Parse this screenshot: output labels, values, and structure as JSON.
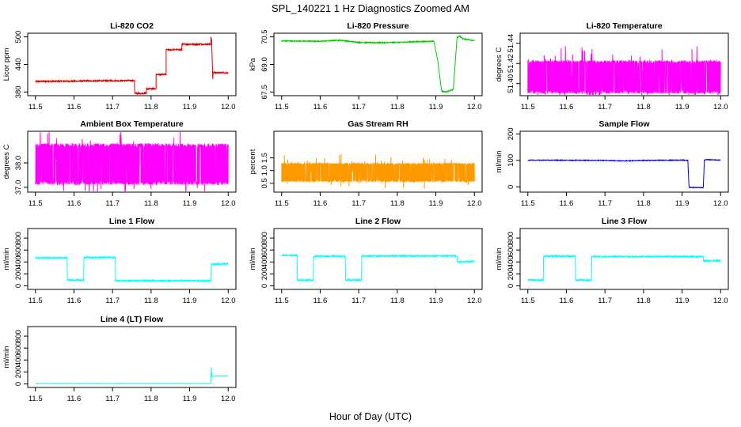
{
  "figure": {
    "title": "SPL_140221  1 Hz Diagnostics Zoomed AM",
    "xlabel": "Hour of Day (UTC)"
  },
  "chart_data": [
    {
      "id": "co2",
      "type": "line",
      "title": "Li-820 CO2",
      "ylabel": "Licor ppm",
      "color": "#dd0000",
      "xlim": [
        11.48,
        12.02
      ],
      "ylim": [
        372,
        508
      ],
      "xticks": [
        11.5,
        11.6,
        11.7,
        11.8,
        11.9,
        12.0
      ],
      "yticks": [
        380,
        440,
        500
      ],
      "ytick_labels": [
        "380",
        "440",
        "500"
      ],
      "noise": 1.5,
      "x": [
        11.5,
        11.757,
        11.757,
        11.758,
        11.788,
        11.788,
        11.813,
        11.813,
        11.839,
        11.839,
        11.88,
        11.88,
        11.955,
        11.955,
        11.957,
        11.96,
        11.961,
        11.963,
        11.963,
        12.0
      ],
      "y": [
        403,
        405,
        392,
        377,
        377,
        387,
        387,
        418,
        418,
        472,
        472,
        484,
        484,
        500,
        493,
        408,
        423,
        423,
        422,
        422
      ]
    },
    {
      "id": "pressure",
      "type": "line",
      "title": "Li-820 Pressure",
      "ylabel": "kPa",
      "color": "#00cc00",
      "xlim": [
        11.48,
        12.02
      ],
      "ylim": [
        67.3,
        70.7
      ],
      "xticks": [
        11.5,
        11.6,
        11.7,
        11.8,
        11.9,
        12.0
      ],
      "yticks": [
        67.5,
        69.0,
        70.5
      ],
      "ytick_labels": [
        "67.5",
        "69.0",
        "70.5"
      ],
      "noise": 0.025,
      "x": [
        11.5,
        11.6,
        11.65,
        11.7,
        11.75,
        11.8,
        11.85,
        11.895,
        11.905,
        11.915,
        11.925,
        11.94,
        11.945,
        11.955,
        11.962,
        11.97,
        12.0
      ],
      "y": [
        70.28,
        70.26,
        70.32,
        70.2,
        70.18,
        70.2,
        70.24,
        70.26,
        69.2,
        67.55,
        67.5,
        67.6,
        67.62,
        70.45,
        70.55,
        70.4,
        70.3
      ]
    },
    {
      "id": "li820temp",
      "type": "line",
      "title": "Li-820 Temperature",
      "ylabel": "degrees C",
      "color": "#ff00ff",
      "xlim": [
        11.48,
        12.02
      ],
      "ylim": [
        51.388,
        51.45
      ],
      "xticks": [
        11.5,
        11.6,
        11.7,
        11.8,
        11.9,
        12.0
      ],
      "yticks": [
        51.4,
        51.42,
        51.44
      ],
      "ytick_labels": [
        "51.40",
        "51.42",
        "51.44"
      ],
      "noise_band": [
        51.39,
        51.423
      ],
      "x": [
        11.5,
        12.0
      ],
      "y": [
        51.39,
        51.423
      ]
    },
    {
      "id": "ambient",
      "type": "line",
      "title": "Ambient Box Temperature",
      "ylabel": "degrees C",
      "color": "#ff00ff",
      "xlim": [
        11.48,
        12.02
      ],
      "ylim": [
        36.8,
        39.3
      ],
      "xticks": [
        11.5,
        11.6,
        11.7,
        11.8,
        11.9,
        12.0
      ],
      "yticks": [
        37.0,
        38.0
      ],
      "ytick_labels": [
        "37.0",
        "38.0"
      ],
      "noise_band": [
        37.1,
        38.8
      ],
      "x": [
        11.5,
        12.0
      ],
      "y": [
        37.1,
        38.8
      ]
    },
    {
      "id": "rh",
      "type": "line",
      "title": "Gas Stream RH",
      "ylabel": "percent",
      "color": "#ff9900",
      "xlim": [
        11.48,
        12.02
      ],
      "ylim": [
        0.15,
        2.55
      ],
      "xticks": [
        11.5,
        11.6,
        11.7,
        11.8,
        11.9,
        12.0
      ],
      "yticks": [
        0.5,
        1.0,
        1.5
      ],
      "ytick_labels": [
        "0.5",
        "1.0",
        "1.5"
      ],
      "noise_band": [
        0.55,
        1.3
      ],
      "x": [
        11.5,
        12.0
      ],
      "y": [
        0.55,
        1.3
      ]
    },
    {
      "id": "sampleflow",
      "type": "line",
      "title": "Sample Flow",
      "ylabel": "ml/min",
      "color": "#0000cc",
      "xlim": [
        11.48,
        12.02
      ],
      "ylim": [
        -20,
        210
      ],
      "xticks": [
        11.5,
        11.6,
        11.7,
        11.8,
        11.9,
        12.0
      ],
      "yticks": [
        0,
        100,
        200
      ],
      "ytick_labels": [
        "0",
        "100",
        "200"
      ],
      "noise": 1.2,
      "x": [
        11.5,
        11.7,
        11.75,
        11.8,
        11.9,
        11.915,
        11.918,
        11.955,
        11.958,
        11.962,
        12.0
      ],
      "y": [
        101,
        100,
        98,
        100,
        101,
        100,
        -2,
        -3,
        100,
        103,
        101
      ]
    },
    {
      "id": "line1",
      "type": "line",
      "title": "Line 1 Flow",
      "ylabel": "ml/min",
      "color": "#00ffff",
      "xlim": [
        11.48,
        12.02
      ],
      "ylim": [
        -60,
        960
      ],
      "xticks": [
        11.5,
        11.6,
        11.7,
        11.8,
        11.9,
        12.0
      ],
      "yticks": [
        0,
        200,
        400,
        600,
        800
      ],
      "ytick_labels": [
        "0",
        "200",
        "400",
        "600",
        "800"
      ],
      "noise": 12,
      "x": [
        11.5,
        11.582,
        11.583,
        11.625,
        11.626,
        11.707,
        11.708,
        11.955,
        11.956,
        12.0
      ],
      "y": [
        470,
        470,
        95,
        95,
        475,
        475,
        85,
        85,
        360,
        370
      ]
    },
    {
      "id": "line2",
      "type": "line",
      "title": "Line 2 Flow",
      "ylabel": "ml/min",
      "color": "#00ffff",
      "xlim": [
        11.48,
        12.02
      ],
      "ylim": [
        -60,
        960
      ],
      "xticks": [
        11.5,
        11.6,
        11.7,
        11.8,
        11.9,
        12.0
      ],
      "yticks": [
        0,
        200,
        400,
        600,
        800
      ],
      "ytick_labels": [
        "0",
        "200",
        "400",
        "600",
        "800"
      ],
      "noise": 12,
      "x": [
        11.5,
        11.54,
        11.541,
        11.582,
        11.583,
        11.665,
        11.666,
        11.707,
        11.708,
        11.955,
        11.956,
        12.0
      ],
      "y": [
        510,
        510,
        95,
        95,
        495,
        495,
        95,
        95,
        500,
        500,
        400,
        410
      ]
    },
    {
      "id": "line3",
      "type": "line",
      "title": "Line 3 Flow",
      "ylabel": "ml/min",
      "color": "#00ffff",
      "xlim": [
        11.48,
        12.02
      ],
      "ylim": [
        -60,
        960
      ],
      "xticks": [
        11.5,
        11.6,
        11.7,
        11.8,
        11.9,
        12.0
      ],
      "yticks": [
        0,
        200,
        400,
        600,
        800
      ],
      "ytick_labels": [
        "0",
        "200",
        "400",
        "600",
        "800"
      ],
      "noise": 12,
      "x": [
        11.5,
        11.54,
        11.541,
        11.623,
        11.624,
        11.665,
        11.666,
        11.955,
        11.956,
        12.0
      ],
      "y": [
        95,
        95,
        495,
        495,
        95,
        95,
        490,
        490,
        420,
        420
      ]
    },
    {
      "id": "line4",
      "type": "line",
      "title": "Line 4 (LT) Flow",
      "ylabel": "ml/min",
      "color": "#00ffff",
      "xlim": [
        11.48,
        12.02
      ],
      "ylim": [
        -60,
        960
      ],
      "xticks": [
        11.5,
        11.6,
        11.7,
        11.8,
        11.9,
        12.0
      ],
      "yticks": [
        0,
        200,
        400,
        600,
        800
      ],
      "ytick_labels": [
        "0",
        "200",
        "400",
        "600",
        "800"
      ],
      "noise": 2,
      "x": [
        11.5,
        11.955,
        11.956,
        11.958,
        11.962,
        12.0
      ],
      "y": [
        5,
        5,
        270,
        120,
        130,
        130
      ]
    }
  ]
}
